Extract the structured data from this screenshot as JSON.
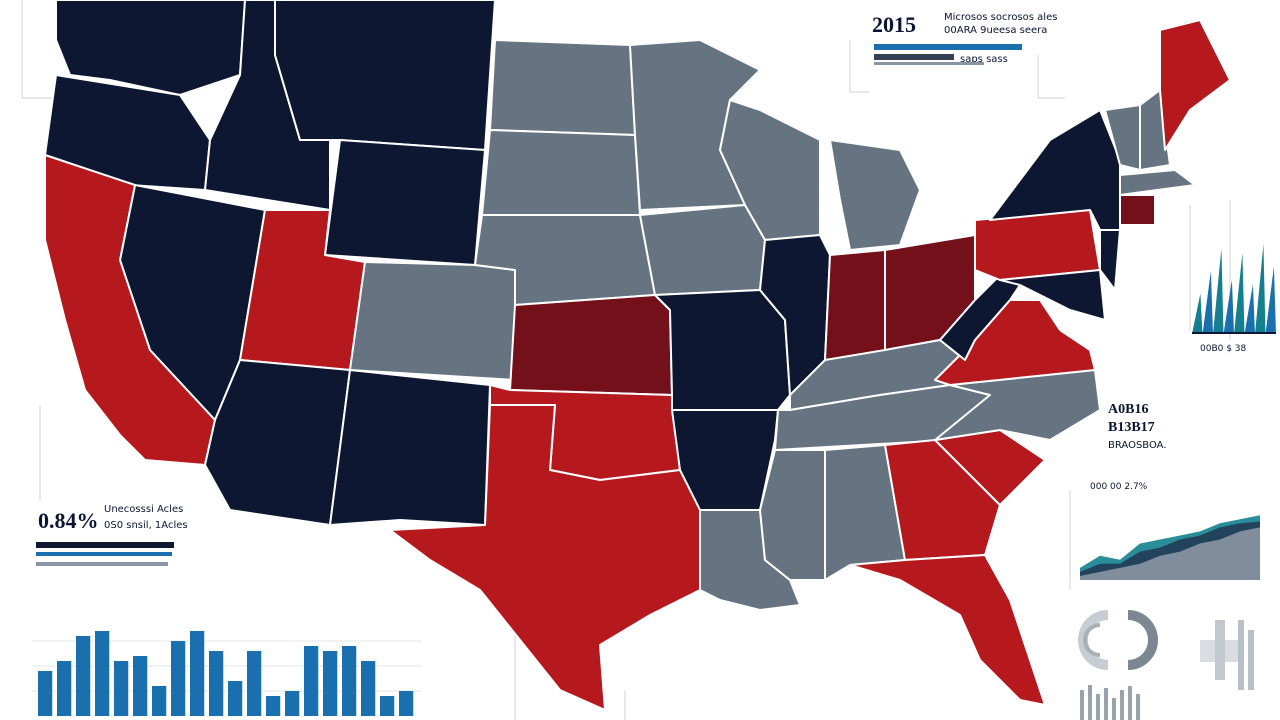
{
  "colors": {
    "navy": "#0d1732",
    "gray": "#667380",
    "red": "#b5191d",
    "darkred": "#74101a",
    "accent_blue": "#1a6fae",
    "teal": "#14808f",
    "border": "#ffffff"
  },
  "map": {
    "regions": [
      {
        "name": "WA",
        "fill": "navy"
      },
      {
        "name": "OR",
        "fill": "navy"
      },
      {
        "name": "ID",
        "fill": "navy"
      },
      {
        "name": "MT",
        "fill": "navy"
      },
      {
        "name": "WY",
        "fill": "navy"
      },
      {
        "name": "NV",
        "fill": "navy"
      },
      {
        "name": "CA",
        "fill": "red"
      },
      {
        "name": "UT",
        "fill": "red"
      },
      {
        "name": "AZ",
        "fill": "navy"
      },
      {
        "name": "NM",
        "fill": "navy"
      },
      {
        "name": "CO",
        "fill": "gray"
      },
      {
        "name": "ND",
        "fill": "gray"
      },
      {
        "name": "SD",
        "fill": "gray"
      },
      {
        "name": "NE",
        "fill": "gray"
      },
      {
        "name": "KS",
        "fill": "darkred"
      },
      {
        "name": "OK",
        "fill": "red"
      },
      {
        "name": "TX",
        "fill": "red"
      },
      {
        "name": "MN",
        "fill": "gray"
      },
      {
        "name": "IA",
        "fill": "gray"
      },
      {
        "name": "MO",
        "fill": "navy"
      },
      {
        "name": "AR",
        "fill": "navy"
      },
      {
        "name": "LA",
        "fill": "gray"
      },
      {
        "name": "WI",
        "fill": "gray"
      },
      {
        "name": "IL",
        "fill": "navy"
      },
      {
        "name": "MI",
        "fill": "gray"
      },
      {
        "name": "IN",
        "fill": "darkred"
      },
      {
        "name": "OH",
        "fill": "darkred"
      },
      {
        "name": "KY",
        "fill": "gray"
      },
      {
        "name": "TN",
        "fill": "gray"
      },
      {
        "name": "MS",
        "fill": "gray"
      },
      {
        "name": "AL",
        "fill": "gray"
      },
      {
        "name": "GA",
        "fill": "red"
      },
      {
        "name": "FL",
        "fill": "red"
      },
      {
        "name": "SC",
        "fill": "red"
      },
      {
        "name": "NC",
        "fill": "gray"
      },
      {
        "name": "VA",
        "fill": "red"
      },
      {
        "name": "WV",
        "fill": "navy"
      },
      {
        "name": "PA",
        "fill": "red"
      },
      {
        "name": "NY",
        "fill": "navy"
      },
      {
        "name": "VT",
        "fill": "gray"
      },
      {
        "name": "NH",
        "fill": "gray"
      },
      {
        "name": "ME",
        "fill": "red"
      },
      {
        "name": "MA",
        "fill": "gray"
      },
      {
        "name": "CT",
        "fill": "darkred"
      },
      {
        "name": "NJ",
        "fill": "navy"
      },
      {
        "name": "MD",
        "fill": "navy"
      }
    ]
  },
  "legend_top": {
    "number": "2015",
    "line1": "Microsos socrosos ales",
    "line2": "00ARA 9ueesa seera",
    "caption": "saps  sass"
  },
  "legend_left": {
    "number": "0.84%",
    "line1": "Unecosssi Acles",
    "line2": "0S0 snsil, 1Acles"
  },
  "annotation_right": {
    "line1": "A0B16",
    "line2": "B13B17",
    "line3": "BRAOSBOA."
  },
  "mini_chart_right": {
    "label": "00B0 $ 38",
    "heights": [
      0.45,
      0.7,
      0.95,
      0.6,
      0.9,
      0.55,
      1.0,
      0.75
    ]
  },
  "area_chart_right": {
    "label": "000 00 2.7%"
  },
  "bar_chart_bottom": {
    "values": [
      0.45,
      0.55,
      0.8,
      0.85,
      0.55,
      0.6,
      0.3,
      0.75,
      0.85,
      0.65,
      0.35,
      0.65,
      0.2,
      0.25,
      0.7,
      0.65,
      0.7,
      0.55,
      0.2,
      0.25
    ]
  }
}
